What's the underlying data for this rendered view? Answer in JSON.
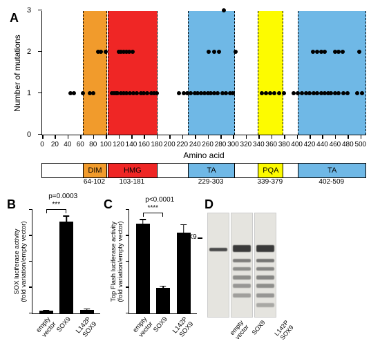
{
  "panel_labels": {
    "A": "A",
    "B": "B",
    "C": "C",
    "D": "D"
  },
  "chartA": {
    "type": "scatter-on-domain",
    "xlim": [
      0,
      510
    ],
    "xtick_step": 20,
    "ylim": [
      0,
      3
    ],
    "yticks": [
      0,
      1,
      2,
      3
    ],
    "xlabel": "Amino acid",
    "ylabel": "Number of mutations",
    "point_color": "#000000",
    "regions": [
      {
        "name": "DIM",
        "start": 64,
        "end": 102,
        "color": "#f19b2c"
      },
      {
        "name": "HMG",
        "start": 103,
        "end": 181,
        "color": "#ef2625"
      },
      {
        "name": "TA",
        "start": 229,
        "end": 303,
        "color": "#6fb8e6"
      },
      {
        "name": "PQA",
        "start": 339,
        "end": 379,
        "color": "#fdfb00"
      },
      {
        "name": "TA",
        "start": 402,
        "end": 509,
        "color": "#6fb8e6"
      }
    ],
    "domain_labels": [
      "DIM",
      "HMG",
      "TA",
      "PQA",
      "TA"
    ],
    "range_labels": [
      "64-102",
      "103-181",
      "229-303",
      "339-379",
      "402-509"
    ],
    "points": [
      [
        45,
        1
      ],
      [
        50,
        1
      ],
      [
        64,
        1
      ],
      [
        75,
        1
      ],
      [
        80,
        1
      ],
      [
        88,
        2
      ],
      [
        92,
        2
      ],
      [
        100,
        2
      ],
      [
        110,
        1
      ],
      [
        113,
        1
      ],
      [
        116,
        1
      ],
      [
        120,
        2
      ],
      [
        124,
        2
      ],
      [
        128,
        2
      ],
      [
        132,
        2
      ],
      [
        137,
        2
      ],
      [
        142,
        2
      ],
      [
        118,
        1
      ],
      [
        124,
        1
      ],
      [
        128,
        1
      ],
      [
        132,
        1
      ],
      [
        138,
        1
      ],
      [
        143,
        1
      ],
      [
        149,
        1
      ],
      [
        155,
        1
      ],
      [
        160,
        1
      ],
      [
        165,
        1
      ],
      [
        171,
        1
      ],
      [
        176,
        1
      ],
      [
        180,
        1
      ],
      [
        215,
        1
      ],
      [
        222,
        1
      ],
      [
        228,
        1
      ],
      [
        233,
        1
      ],
      [
        240,
        1
      ],
      [
        244,
        1
      ],
      [
        250,
        1
      ],
      [
        255,
        1
      ],
      [
        260,
        1
      ],
      [
        265,
        1
      ],
      [
        270,
        1
      ],
      [
        276,
        1
      ],
      [
        283,
        1
      ],
      [
        289,
        1
      ],
      [
        295,
        1
      ],
      [
        300,
        1
      ],
      [
        262,
        2
      ],
      [
        270,
        2
      ],
      [
        278,
        2
      ],
      [
        304,
        2
      ],
      [
        285,
        3
      ],
      [
        345,
        1
      ],
      [
        352,
        1
      ],
      [
        358,
        1
      ],
      [
        365,
        1
      ],
      [
        372,
        1
      ],
      [
        380,
        1
      ],
      [
        395,
        1
      ],
      [
        402,
        1
      ],
      [
        408,
        1
      ],
      [
        414,
        1
      ],
      [
        420,
        1
      ],
      [
        426,
        1
      ],
      [
        432,
        1
      ],
      [
        438,
        1
      ],
      [
        444,
        1
      ],
      [
        449,
        1
      ],
      [
        454,
        1
      ],
      [
        460,
        1
      ],
      [
        466,
        1
      ],
      [
        473,
        1
      ],
      [
        480,
        1
      ],
      [
        425,
        2
      ],
      [
        432,
        2
      ],
      [
        438,
        2
      ],
      [
        444,
        2
      ],
      [
        460,
        2
      ],
      [
        466,
        2
      ],
      [
        472,
        2
      ],
      [
        498,
        2
      ],
      [
        495,
        1
      ],
      [
        502,
        1
      ]
    ]
  },
  "chartB": {
    "type": "bar",
    "title_p": "p=0.0003",
    "stars": "***",
    "ylabel": "SOX luciferase activity\n(fold variation/empty vector)",
    "categories": [
      "empty\nvector",
      "SOX9",
      "L142P\nSOX9"
    ],
    "values": [
      1.0,
      32,
      1.3
    ],
    "errors": [
      0.3,
      2.0,
      0.5
    ],
    "ylim": [
      0,
      36
    ],
    "bar_color": "#000000"
  },
  "chartC": {
    "type": "bar",
    "title_p": "p<0.0001",
    "stars": "****",
    "ylabel": "Top Flash luciferase activity\n(fold variation/empty vector)",
    "categories": [
      "empty\nvector",
      "SOX9",
      "L142P\nSOX9"
    ],
    "values": [
      1.0,
      0.28,
      0.9
    ],
    "errors": [
      0.05,
      0.03,
      0.09
    ],
    "ylim": [
      0,
      1.15
    ],
    "bar_color": "#000000"
  },
  "panelD": {
    "sox_label": "SOX9",
    "lanes": [
      "empty\nvector",
      "SOX9",
      "L142P\nSOX9"
    ]
  }
}
